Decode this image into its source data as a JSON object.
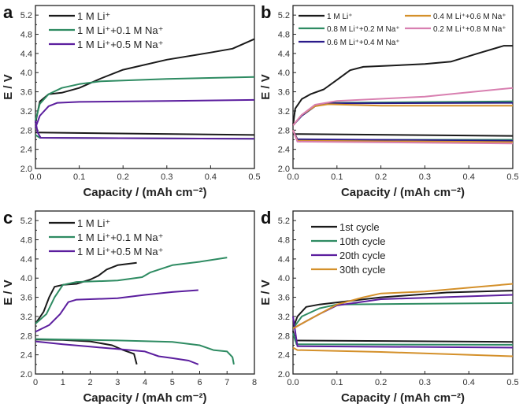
{
  "chart_data": [
    {
      "panel": "a",
      "type": "line",
      "xlabel": "Capacity / (mAh cm⁻²)",
      "ylabel": "E / V",
      "xlim": [
        0,
        0.5
      ],
      "ylim": [
        2.0,
        5.4
      ],
      "xticks": [
        "0.0",
        "0.1",
        "0.2",
        "0.3",
        "0.4",
        "0.5"
      ],
      "yticks": [
        "2.0",
        "2.4",
        "2.8",
        "3.2",
        "3.6",
        "4.0",
        "4.4",
        "4.8",
        "5.2"
      ],
      "legend": "top-left",
      "series": [
        {
          "name": "1 M Li⁺",
          "color": "#1a1a1a",
          "charge": [
            [
              0,
              2.95
            ],
            [
              0.01,
              3.4
            ],
            [
              0.03,
              3.55
            ],
            [
              0.06,
              3.58
            ],
            [
              0.1,
              3.68
            ],
            [
              0.15,
              3.88
            ],
            [
              0.2,
              4.06
            ],
            [
              0.3,
              4.27
            ],
            [
              0.4,
              4.42
            ],
            [
              0.45,
              4.5
            ],
            [
              0.5,
              4.7
            ]
          ],
          "discharge": [
            [
              0,
              2.75
            ],
            [
              0.5,
              2.7
            ]
          ]
        },
        {
          "name": "1 M Li⁺+0.1 M Na⁺",
          "color": "#2e8b62",
          "charge": [
            [
              0,
              3.0
            ],
            [
              0.01,
              3.35
            ],
            [
              0.03,
              3.55
            ],
            [
              0.06,
              3.68
            ],
            [
              0.1,
              3.76
            ],
            [
              0.15,
              3.82
            ],
            [
              0.3,
              3.87
            ],
            [
              0.5,
              3.91
            ]
          ],
          "discharge": [
            [
              0,
              2.7
            ],
            [
              0.01,
              2.64
            ],
            [
              0.5,
              2.62
            ]
          ]
        },
        {
          "name": "1 M Li⁺+0.5 M Na⁺",
          "color": "#5b1e9e",
          "charge": [
            [
              0,
              2.85
            ],
            [
              0.01,
              3.1
            ],
            [
              0.03,
              3.3
            ],
            [
              0.05,
              3.37
            ],
            [
              0.1,
              3.39
            ],
            [
              0.3,
              3.41
            ],
            [
              0.5,
              3.43
            ]
          ],
          "discharge": [
            [
              0,
              3.0
            ],
            [
              0.005,
              2.75
            ],
            [
              0.012,
              2.64
            ],
            [
              0.5,
              2.62
            ]
          ]
        }
      ]
    },
    {
      "panel": "b",
      "type": "line",
      "xlabel": "Capacity / (mAh cm⁻²)",
      "ylabel": "E / V",
      "xlim": [
        0,
        0.5
      ],
      "ylim": [
        2.0,
        5.4
      ],
      "xticks": [
        "0.0",
        "0.1",
        "0.2",
        "0.3",
        "0.4",
        "0.5"
      ],
      "yticks": [
        "2.0",
        "2.4",
        "2.8",
        "3.2",
        "3.6",
        "4.0",
        "4.4",
        "4.8",
        "5.2"
      ],
      "legend": "top (two columns)",
      "series": [
        {
          "name": "1 M Li⁺",
          "color": "#1a1a1a",
          "charge": [
            [
              0,
              2.9
            ],
            [
              0.005,
              3.25
            ],
            [
              0.02,
              3.45
            ],
            [
              0.04,
              3.55
            ],
            [
              0.07,
              3.65
            ],
            [
              0.1,
              3.85
            ],
            [
              0.13,
              4.05
            ],
            [
              0.16,
              4.12
            ],
            [
              0.3,
              4.18
            ],
            [
              0.36,
              4.23
            ],
            [
              0.42,
              4.4
            ],
            [
              0.48,
              4.56
            ],
            [
              0.5,
              4.56
            ]
          ],
          "discharge": [
            [
              0,
              2.72
            ],
            [
              0.5,
              2.68
            ]
          ]
        },
        {
          "name": "0.8 M Li⁺+0.2 M Na⁺",
          "color": "#2e8b62",
          "charge": [
            [
              0,
              2.9
            ],
            [
              0.02,
              3.1
            ],
            [
              0.05,
              3.3
            ],
            [
              0.08,
              3.37
            ],
            [
              0.5,
              3.4
            ]
          ],
          "discharge": [
            [
              0,
              2.8
            ],
            [
              0.01,
              2.6
            ],
            [
              0.5,
              2.6
            ]
          ]
        },
        {
          "name": "0.6 M Li⁺+0.4 M Na⁺",
          "color": "#2a1a8a",
          "charge": [
            [
              0,
              2.9
            ],
            [
              0.02,
              3.1
            ],
            [
              0.05,
              3.3
            ],
            [
              0.08,
              3.36
            ],
            [
              0.5,
              3.37
            ]
          ],
          "discharge": [
            [
              0,
              2.8
            ],
            [
              0.01,
              2.61
            ],
            [
              0.5,
              2.58
            ]
          ]
        },
        {
          "name": "0.4 M Li⁺+0.6 M Na⁺",
          "color": "#d4902a",
          "charge": [
            [
              0,
              2.9
            ],
            [
              0.02,
              3.12
            ],
            [
              0.05,
              3.3
            ],
            [
              0.08,
              3.34
            ],
            [
              0.2,
              3.31
            ],
            [
              0.5,
              3.31
            ]
          ],
          "discharge": [
            [
              0,
              2.8
            ],
            [
              0.01,
              2.58
            ],
            [
              0.5,
              2.55
            ]
          ]
        },
        {
          "name": "0.2 M Li⁺+0.8 M Na⁺",
          "color": "#d87fb0",
          "charge": [
            [
              0,
              2.9
            ],
            [
              0.02,
              3.12
            ],
            [
              0.05,
              3.33
            ],
            [
              0.1,
              3.41
            ],
            [
              0.3,
              3.5
            ],
            [
              0.5,
              3.68
            ]
          ],
          "discharge": [
            [
              0,
              2.8
            ],
            [
              0.01,
              2.56
            ],
            [
              0.5,
              2.52
            ]
          ]
        }
      ]
    },
    {
      "panel": "c",
      "type": "line",
      "xlabel": "Capacity / (mAh cm⁻²)",
      "ylabel": "E / V",
      "xlim": [
        0,
        8
      ],
      "ylim": [
        2.0,
        5.4
      ],
      "xticks": [
        "0",
        "1",
        "2",
        "3",
        "4",
        "5",
        "6",
        "7",
        "8"
      ],
      "yticks": [
        "2.0",
        "2.4",
        "2.8",
        "3.2",
        "3.6",
        "4.0",
        "4.4",
        "4.8",
        "5.2"
      ],
      "legend": "top-left",
      "series": [
        {
          "name": "1 M Li⁺",
          "color": "#1a1a1a",
          "charge": [
            [
              0,
              3.05
            ],
            [
              0.3,
              3.3
            ],
            [
              0.5,
              3.6
            ],
            [
              0.7,
              3.82
            ],
            [
              1,
              3.86
            ],
            [
              1.5,
              3.88
            ],
            [
              2,
              3.97
            ],
            [
              2.3,
              4.05
            ],
            [
              2.6,
              4.18
            ],
            [
              3,
              4.27
            ],
            [
              3.7,
              4.32
            ]
          ],
          "discharge": [
            [
              0,
              2.72
            ],
            [
              1,
              2.71
            ],
            [
              2,
              2.68
            ],
            [
              2.8,
              2.6
            ],
            [
              3.2,
              2.5
            ],
            [
              3.6,
              2.42
            ],
            [
              3.7,
              2.2
            ]
          ]
        },
        {
          "name": "1 M Li⁺+0.1 M Na⁺",
          "color": "#2e8b62",
          "charge": [
            [
              0,
              3.05
            ],
            [
              0.4,
              3.25
            ],
            [
              0.7,
              3.6
            ],
            [
              1,
              3.86
            ],
            [
              1.5,
              3.92
            ],
            [
              3,
              3.95
            ],
            [
              3.9,
              4.02
            ],
            [
              4.2,
              4.12
            ],
            [
              5,
              4.27
            ],
            [
              6,
              4.34
            ],
            [
              7,
              4.43
            ]
          ],
          "discharge": [
            [
              0,
              2.73
            ],
            [
              3,
              2.7
            ],
            [
              5,
              2.67
            ],
            [
              6,
              2.6
            ],
            [
              6.5,
              2.5
            ],
            [
              7,
              2.47
            ],
            [
              7.2,
              2.35
            ],
            [
              7.25,
              2.2
            ]
          ]
        },
        {
          "name": "1 M Li⁺+0.5 M Na⁺",
          "color": "#5b1e9e",
          "charge": [
            [
              0,
              2.88
            ],
            [
              0.5,
              3.02
            ],
            [
              0.9,
              3.25
            ],
            [
              1.2,
              3.5
            ],
            [
              1.5,
              3.55
            ],
            [
              3,
              3.58
            ],
            [
              4,
              3.65
            ],
            [
              5,
              3.71
            ],
            [
              5.95,
              3.75
            ]
          ],
          "discharge": [
            [
              0,
              2.68
            ],
            [
              1,
              2.62
            ],
            [
              2,
              2.57
            ],
            [
              3,
              2.52
            ],
            [
              4,
              2.47
            ],
            [
              4.5,
              2.37
            ],
            [
              5,
              2.33
            ],
            [
              5.6,
              2.28
            ],
            [
              5.95,
              2.2
            ]
          ]
        }
      ]
    },
    {
      "panel": "d",
      "type": "line",
      "xlabel": "Capacity / (mAh cm⁻²)",
      "ylabel": "E / V",
      "xlim": [
        0,
        0.5
      ],
      "ylim": [
        2.0,
        5.4
      ],
      "xticks": [
        "0.0",
        "0.1",
        "0.2",
        "0.3",
        "0.4",
        "0.5"
      ],
      "yticks": [
        "2.0",
        "2.4",
        "2.8",
        "3.2",
        "3.6",
        "4.0",
        "4.4",
        "4.8",
        "5.2"
      ],
      "legend": "top-left",
      "series": [
        {
          "name": "1st cycle",
          "color": "#1a1a1a",
          "charge": [
            [
              0,
              2.95
            ],
            [
              0.01,
              3.2
            ],
            [
              0.03,
              3.4
            ],
            [
              0.06,
              3.45
            ],
            [
              0.2,
              3.6
            ],
            [
              0.35,
              3.7
            ],
            [
              0.5,
              3.74
            ]
          ],
          "discharge": [
            [
              0,
              2.9
            ],
            [
              0.005,
              2.7
            ],
            [
              0.5,
              2.67
            ]
          ]
        },
        {
          "name": "10th cycle",
          "color": "#2e8b62",
          "charge": [
            [
              0,
              2.95
            ],
            [
              0.02,
              3.2
            ],
            [
              0.06,
              3.37
            ],
            [
              0.1,
              3.45
            ],
            [
              0.5,
              3.48
            ]
          ],
          "discharge": [
            [
              0,
              2.85
            ],
            [
              0.008,
              2.62
            ],
            [
              0.5,
              2.61
            ]
          ]
        },
        {
          "name": "20th cycle",
          "color": "#5b1e9e",
          "charge": [
            [
              0,
              2.95
            ],
            [
              0.03,
              3.1
            ],
            [
              0.06,
              3.25
            ],
            [
              0.1,
              3.43
            ],
            [
              0.2,
              3.56
            ],
            [
              0.3,
              3.59
            ],
            [
              0.4,
              3.62
            ],
            [
              0.5,
              3.65
            ]
          ],
          "discharge": [
            [
              0,
              3.2
            ],
            [
              0.01,
              2.58
            ],
            [
              0.5,
              2.55
            ]
          ]
        },
        {
          "name": "30th cycle",
          "color": "#d4902a",
          "charge": [
            [
              0,
              2.95
            ],
            [
              0.03,
              3.1
            ],
            [
              0.06,
              3.25
            ],
            [
              0.1,
              3.45
            ],
            [
              0.16,
              3.6
            ],
            [
              0.2,
              3.68
            ],
            [
              0.3,
              3.72
            ],
            [
              0.4,
              3.8
            ],
            [
              0.5,
              3.88
            ]
          ],
          "discharge": [
            [
              0,
              2.55
            ],
            [
              0.01,
              2.5
            ],
            [
              0.2,
              2.46
            ],
            [
              0.5,
              2.37
            ]
          ]
        }
      ]
    }
  ]
}
